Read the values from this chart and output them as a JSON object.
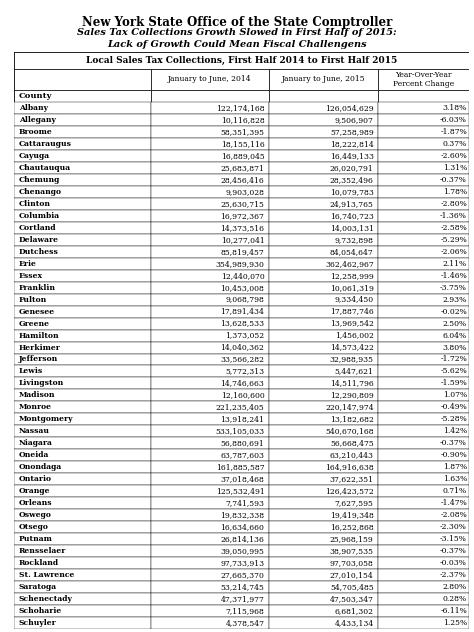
{
  "title1": "New York State Office of the State Comptroller",
  "title2": "Sales Tax Collections Growth Slowed in First Half of 2015:",
  "title3": "Lack of Growth Could Mean Fiscal Challengens",
  "table_title": "Local Sales Tax Collections, First Half 2014 to First Half 2015",
  "col1_header": "January to June, 2014",
  "col2_header": "January to June, 2015",
  "col3_header": "Year-Over-Year\nPercent Change",
  "counties": [
    "Albany",
    "Allegany",
    "Broome",
    "Cattaraugus",
    "Cayuga",
    "Chautauqua",
    "Chemung",
    "Chenango",
    "Clinton",
    "Columbia",
    "Cortland",
    "Delaware",
    "Dutchess",
    "Erie",
    "Essex",
    "Franklin",
    "Fulton",
    "Genesee",
    "Greene",
    "Hamilton",
    "Herkimer",
    "Jefferson",
    "Lewis",
    "Livingston",
    "Madison",
    "Monroe",
    "Montgomery",
    "Nassau",
    "Niagara",
    "Oneida",
    "Onondaga",
    "Ontario",
    "Orange",
    "Orleans",
    "Oswego",
    "Otsego",
    "Putnam",
    "Rensselaer",
    "Rockland",
    "St. Lawrence",
    "Saratoga",
    "Schenectady",
    "Schoharie",
    "Schuyler"
  ],
  "jan2014": [
    "122,174,168",
    "10,116,828",
    "58,351,395",
    "18,155,116",
    "16,889,045",
    "25,683,871",
    "28,456,416",
    "9,903,028",
    "25,630,715",
    "16,972,367",
    "14,373,516",
    "10,277,041",
    "85,819,457",
    "354,989,930",
    "12,440,070",
    "10,453,008",
    "9,068,798",
    "17,891,434",
    "13,628,533",
    "1,373,052",
    "14,040,362",
    "33,566,282",
    "5,772,313",
    "14,746,663",
    "12,160,600",
    "221,235,405",
    "13,918,241",
    "533,105,033",
    "56,880,691",
    "63,787,603",
    "161,885,587",
    "37,018,468",
    "125,532,491",
    "7,741,593",
    "19,832,338",
    "16,634,660",
    "26,814,136",
    "39,050,995",
    "97,733,913",
    "27,665,370",
    "53,214,745",
    "47,371,977",
    "7,115,968",
    "4,378,547"
  ],
  "jan2015": [
    "126,054,629",
    "9,506,907",
    "57,258,989",
    "18,222,814",
    "16,449,133",
    "26,020,791",
    "28,352,496",
    "10,079,783",
    "24,913,765",
    "16,740,723",
    "14,003,131",
    "9,732,898",
    "84,054,647",
    "362,462,967",
    "12,258,999",
    "10,061,319",
    "9,334,450",
    "17,887,746",
    "13,969,542",
    "1,456,002",
    "14,573,422",
    "32,988,935",
    "5,447,621",
    "14,511,796",
    "12,290,809",
    "220,147,974",
    "13,182,682",
    "540,670,168",
    "56,668,475",
    "63,210,443",
    "164,916,638",
    "37,622,351",
    "126,423,572",
    "7,627,595",
    "19,419,348",
    "16,252,868",
    "25,968,159",
    "38,907,535",
    "97,703,058",
    "27,010,154",
    "54,705,485",
    "47,503,347",
    "6,681,302",
    "4,433,134"
  ],
  "pct_change": [
    "3.18%",
    "-6.03%",
    "-1.87%",
    "0.37%",
    "-2.60%",
    "1.31%",
    "-0.37%",
    "1.78%",
    "-2.80%",
    "-1.36%",
    "-2.58%",
    "-5.29%",
    "-2.06%",
    "2.11%",
    "-1.46%",
    "-3.75%",
    "2.93%",
    "-0.02%",
    "2.50%",
    "6.04%",
    "3.80%",
    "-1.72%",
    "-5.62%",
    "-1.59%",
    "1.07%",
    "-0.49%",
    "-5.28%",
    "1.42%",
    "-0.37%",
    "-0.90%",
    "1.87%",
    "1.63%",
    "0.71%",
    "-1.47%",
    "-2.08%",
    "-2.30%",
    "-3.15%",
    "-0.37%",
    "-0.03%",
    "-2.37%",
    "2.80%",
    "0.28%",
    "-6.11%",
    "1.25%"
  ],
  "fig_width": 4.74,
  "fig_height": 6.32,
  "dpi": 100
}
